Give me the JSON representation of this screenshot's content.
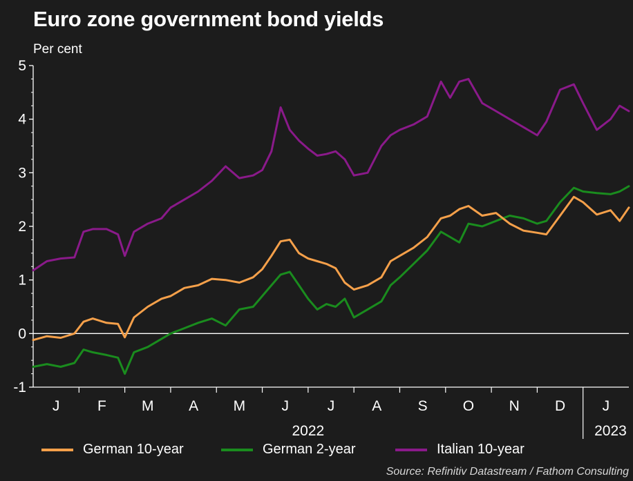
{
  "colors": {
    "background": "#1c1c1c",
    "german10": "#f5a04a",
    "german2": "#1a8c1e",
    "italian10": "#8a1a8a",
    "zero_line": "#ffffff"
  },
  "chart_data": {
    "type": "line",
    "title": "Euro zone government bond yields",
    "ylabel": "Per cent",
    "xlabel": "",
    "ylim": [
      -1,
      5
    ],
    "yticks": [
      "5",
      "4",
      "3",
      "2",
      "1",
      "0",
      "-1"
    ],
    "xlim": [
      0,
      13
    ],
    "month_ticks": [
      {
        "label": "J",
        "x": 0.5
      },
      {
        "label": "F",
        "x": 1.5
      },
      {
        "label": "M",
        "x": 2.5
      },
      {
        "label": "A",
        "x": 3.5
      },
      {
        "label": "M",
        "x": 4.5
      },
      {
        "label": "J",
        "x": 5.5
      },
      {
        "label": "J",
        "x": 6.5
      },
      {
        "label": "A",
        "x": 7.5
      },
      {
        "label": "S",
        "x": 8.5
      },
      {
        "label": "O",
        "x": 9.5
      },
      {
        "label": "N",
        "x": 10.5
      },
      {
        "label": "D",
        "x": 11.5
      },
      {
        "label": "J",
        "x": 12.5
      }
    ],
    "year_labels": [
      {
        "label": "2022",
        "x": 6
      },
      {
        "label": "2023",
        "x": 12.6
      }
    ],
    "x_units": "months since 1 Jan 2022",
    "series": [
      {
        "name": "German 10-year",
        "color_key": "german10",
        "x": [
          0,
          0.3,
          0.6,
          0.9,
          1.1,
          1.3,
          1.6,
          1.85,
          2.0,
          2.2,
          2.5,
          2.8,
          3.0,
          3.3,
          3.6,
          3.9,
          4.2,
          4.5,
          4.8,
          5.0,
          5.2,
          5.4,
          5.6,
          5.8,
          6.0,
          6.2,
          6.4,
          6.6,
          6.8,
          7.0,
          7.3,
          7.6,
          7.8,
          8.0,
          8.3,
          8.6,
          8.9,
          9.1,
          9.3,
          9.5,
          9.8,
          10.1,
          10.4,
          10.7,
          11.0,
          11.2,
          11.5,
          11.8,
          12.0,
          12.3,
          12.6,
          12.8,
          13.0
        ],
        "values": [
          -0.12,
          -0.05,
          -0.08,
          0.0,
          0.22,
          0.28,
          0.2,
          0.18,
          -0.07,
          0.3,
          0.5,
          0.65,
          0.7,
          0.85,
          0.9,
          1.02,
          1.0,
          0.95,
          1.05,
          1.2,
          1.45,
          1.72,
          1.75,
          1.5,
          1.4,
          1.35,
          1.3,
          1.22,
          0.95,
          0.82,
          0.9,
          1.05,
          1.35,
          1.45,
          1.6,
          1.8,
          2.15,
          2.2,
          2.32,
          2.38,
          2.2,
          2.25,
          2.05,
          1.92,
          1.88,
          1.85,
          2.2,
          2.55,
          2.45,
          2.22,
          2.3,
          2.1,
          2.35
        ]
      },
      {
        "name": "German 2-year",
        "color_key": "german2",
        "x": [
          0,
          0.3,
          0.6,
          0.9,
          1.1,
          1.3,
          1.6,
          1.85,
          2.0,
          2.2,
          2.5,
          2.8,
          3.0,
          3.3,
          3.6,
          3.9,
          4.2,
          4.5,
          4.8,
          5.0,
          5.2,
          5.4,
          5.6,
          5.8,
          6.0,
          6.2,
          6.4,
          6.6,
          6.8,
          7.0,
          7.3,
          7.6,
          7.8,
          8.0,
          8.3,
          8.6,
          8.9,
          9.1,
          9.3,
          9.5,
          9.8,
          10.1,
          10.4,
          10.7,
          11.0,
          11.2,
          11.5,
          11.8,
          12.0,
          12.3,
          12.6,
          12.8,
          13.0
        ],
        "values": [
          -0.62,
          -0.57,
          -0.62,
          -0.55,
          -0.3,
          -0.35,
          -0.4,
          -0.45,
          -0.75,
          -0.35,
          -0.25,
          -0.1,
          0.0,
          0.1,
          0.2,
          0.28,
          0.15,
          0.45,
          0.5,
          0.7,
          0.9,
          1.1,
          1.15,
          0.9,
          0.65,
          0.45,
          0.55,
          0.5,
          0.65,
          0.3,
          0.45,
          0.6,
          0.9,
          1.05,
          1.3,
          1.55,
          1.9,
          1.8,
          1.7,
          2.05,
          2.0,
          2.1,
          2.2,
          2.15,
          2.05,
          2.1,
          2.45,
          2.72,
          2.65,
          2.62,
          2.6,
          2.65,
          2.75
        ]
      },
      {
        "name": "Italian 10-year",
        "color_key": "italian10",
        "x": [
          0,
          0.3,
          0.6,
          0.9,
          1.1,
          1.3,
          1.6,
          1.85,
          2.0,
          2.2,
          2.5,
          2.8,
          3.0,
          3.3,
          3.6,
          3.9,
          4.2,
          4.5,
          4.8,
          5.0,
          5.2,
          5.4,
          5.6,
          5.8,
          6.0,
          6.2,
          6.4,
          6.6,
          6.8,
          7.0,
          7.3,
          7.6,
          7.8,
          8.0,
          8.3,
          8.6,
          8.9,
          9.1,
          9.3,
          9.5,
          9.8,
          10.1,
          10.4,
          10.7,
          11.0,
          11.2,
          11.5,
          11.8,
          12.0,
          12.3,
          12.6,
          12.8,
          13.0
        ],
        "values": [
          1.18,
          1.35,
          1.4,
          1.42,
          1.9,
          1.95,
          1.95,
          1.85,
          1.45,
          1.9,
          2.05,
          2.15,
          2.35,
          2.5,
          2.65,
          2.85,
          3.12,
          2.9,
          2.95,
          3.05,
          3.4,
          4.22,
          3.8,
          3.6,
          3.45,
          3.32,
          3.35,
          3.4,
          3.25,
          2.95,
          3.0,
          3.5,
          3.7,
          3.8,
          3.9,
          4.05,
          4.7,
          4.4,
          4.7,
          4.75,
          4.3,
          4.15,
          4.0,
          3.85,
          3.7,
          3.95,
          4.55,
          4.65,
          4.3,
          3.8,
          4.0,
          4.25,
          4.15
        ]
      }
    ]
  },
  "legend": [
    {
      "label": "German 10-year",
      "color_key": "german10"
    },
    {
      "label": "German 2-year",
      "color_key": "german2"
    },
    {
      "label": "Italian 10-year",
      "color_key": "italian10"
    }
  ],
  "source": "Source: Refinitiv Datastream / Fathom Consulting"
}
